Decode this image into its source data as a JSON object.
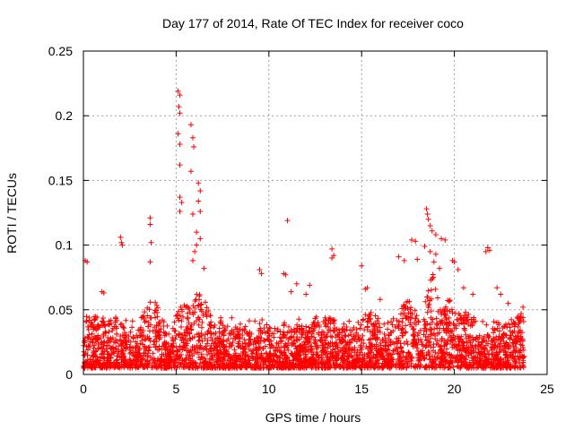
{
  "chart_data": {
    "type": "scatter",
    "title": "Day 177 of 2014, Rate Of TEC Index for receiver coco",
    "xlabel": "GPS time / hours",
    "ylabel": "ROTI / TECUs",
    "xlim": [
      0,
      25
    ],
    "ylim": [
      0,
      0.25
    ],
    "xticks": [
      0,
      5,
      10,
      15,
      20,
      25
    ],
    "xtick_labels": [
      "0",
      "5",
      "10",
      "15",
      "20",
      "25"
    ],
    "yticks": [
      0,
      0.05,
      0.1,
      0.15,
      0.2,
      0.25
    ],
    "ytick_labels": [
      "0",
      "0.05",
      "0.1",
      "0.15",
      "0.2",
      "0.25"
    ],
    "grid": true,
    "marker": "+",
    "color": "#ff0000",
    "notable_points": [
      {
        "x": 0.1,
        "y": 0.088
      },
      {
        "x": 0.2,
        "y": 0.087
      },
      {
        "x": 1.0,
        "y": 0.064
      },
      {
        "x": 1.1,
        "y": 0.063
      },
      {
        "x": 2.0,
        "y": 0.106
      },
      {
        "x": 2.05,
        "y": 0.102
      },
      {
        "x": 2.1,
        "y": 0.1
      },
      {
        "x": 3.6,
        "y": 0.121
      },
      {
        "x": 3.6,
        "y": 0.116
      },
      {
        "x": 3.65,
        "y": 0.102
      },
      {
        "x": 3.6,
        "y": 0.087
      },
      {
        "x": 5.1,
        "y": 0.219
      },
      {
        "x": 5.2,
        "y": 0.216
      },
      {
        "x": 5.15,
        "y": 0.207
      },
      {
        "x": 5.2,
        "y": 0.202
      },
      {
        "x": 5.1,
        "y": 0.186
      },
      {
        "x": 5.2,
        "y": 0.178
      },
      {
        "x": 5.2,
        "y": 0.162
      },
      {
        "x": 5.2,
        "y": 0.137
      },
      {
        "x": 5.3,
        "y": 0.133
      },
      {
        "x": 5.2,
        "y": 0.126
      },
      {
        "x": 5.8,
        "y": 0.193
      },
      {
        "x": 5.9,
        "y": 0.183
      },
      {
        "x": 5.95,
        "y": 0.176
      },
      {
        "x": 5.8,
        "y": 0.157
      },
      {
        "x": 6.2,
        "y": 0.148
      },
      {
        "x": 6.3,
        "y": 0.142
      },
      {
        "x": 6.2,
        "y": 0.134
      },
      {
        "x": 6.3,
        "y": 0.126
      },
      {
        "x": 5.9,
        "y": 0.124
      },
      {
        "x": 6.1,
        "y": 0.11
      },
      {
        "x": 6.3,
        "y": 0.105
      },
      {
        "x": 6.1,
        "y": 0.1
      },
      {
        "x": 6.0,
        "y": 0.095
      },
      {
        "x": 5.9,
        "y": 0.088
      },
      {
        "x": 6.5,
        "y": 0.082
      },
      {
        "x": 9.5,
        "y": 0.081
      },
      {
        "x": 9.6,
        "y": 0.078
      },
      {
        "x": 11.0,
        "y": 0.119
      },
      {
        "x": 10.8,
        "y": 0.078
      },
      {
        "x": 10.9,
        "y": 0.077
      },
      {
        "x": 11.2,
        "y": 0.064
      },
      {
        "x": 11.5,
        "y": 0.07
      },
      {
        "x": 12.0,
        "y": 0.062
      },
      {
        "x": 12.2,
        "y": 0.069
      },
      {
        "x": 13.4,
        "y": 0.097
      },
      {
        "x": 13.5,
        "y": 0.092
      },
      {
        "x": 13.4,
        "y": 0.09
      },
      {
        "x": 15.0,
        "y": 0.084
      },
      {
        "x": 15.2,
        "y": 0.066
      },
      {
        "x": 15.3,
        "y": 0.067
      },
      {
        "x": 16.0,
        "y": 0.058
      },
      {
        "x": 17.0,
        "y": 0.091
      },
      {
        "x": 17.3,
        "y": 0.088
      },
      {
        "x": 17.7,
        "y": 0.104
      },
      {
        "x": 17.9,
        "y": 0.103
      },
      {
        "x": 18.0,
        "y": 0.089
      },
      {
        "x": 18.5,
        "y": 0.128
      },
      {
        "x": 18.55,
        "y": 0.124
      },
      {
        "x": 18.6,
        "y": 0.12
      },
      {
        "x": 18.7,
        "y": 0.115
      },
      {
        "x": 18.8,
        "y": 0.111
      },
      {
        "x": 19.0,
        "y": 0.108
      },
      {
        "x": 19.3,
        "y": 0.105
      },
      {
        "x": 19.5,
        "y": 0.104
      },
      {
        "x": 18.4,
        "y": 0.099
      },
      {
        "x": 18.7,
        "y": 0.095
      },
      {
        "x": 19.0,
        "y": 0.093
      },
      {
        "x": 18.9,
        "y": 0.087
      },
      {
        "x": 19.2,
        "y": 0.082
      },
      {
        "x": 19.9,
        "y": 0.088
      },
      {
        "x": 20.0,
        "y": 0.087
      },
      {
        "x": 20.2,
        "y": 0.081
      },
      {
        "x": 20.5,
        "y": 0.067
      },
      {
        "x": 21.0,
        "y": 0.062
      },
      {
        "x": 21.8,
        "y": 0.098
      },
      {
        "x": 21.9,
        "y": 0.096
      },
      {
        "x": 21.7,
        "y": 0.095
      },
      {
        "x": 22.3,
        "y": 0.067
      },
      {
        "x": 22.5,
        "y": 0.062
      },
      {
        "x": 22.9,
        "y": 0.055
      },
      {
        "x": 23.7,
        "y": 0.052
      },
      {
        "x": 23.6,
        "y": 0.047
      }
    ],
    "dense_background": {
      "x_range": [
        0,
        23.8
      ],
      "baseline_range": [
        0.005,
        0.045
      ],
      "bump_centers": [
        {
          "x": 0.2,
          "y": 0.045
        },
        {
          "x": 1.2,
          "y": 0.04
        },
        {
          "x": 3.7,
          "y": 0.06
        },
        {
          "x": 5.5,
          "y": 0.06
        },
        {
          "x": 6.3,
          "y": 0.07
        },
        {
          "x": 13.0,
          "y": 0.045
        },
        {
          "x": 15.3,
          "y": 0.05
        },
        {
          "x": 17.5,
          "y": 0.06
        },
        {
          "x": 18.8,
          "y": 0.08
        },
        {
          "x": 19.7,
          "y": 0.06
        },
        {
          "x": 20.5,
          "y": 0.05
        },
        {
          "x": 23.6,
          "y": 0.045
        }
      ]
    }
  }
}
